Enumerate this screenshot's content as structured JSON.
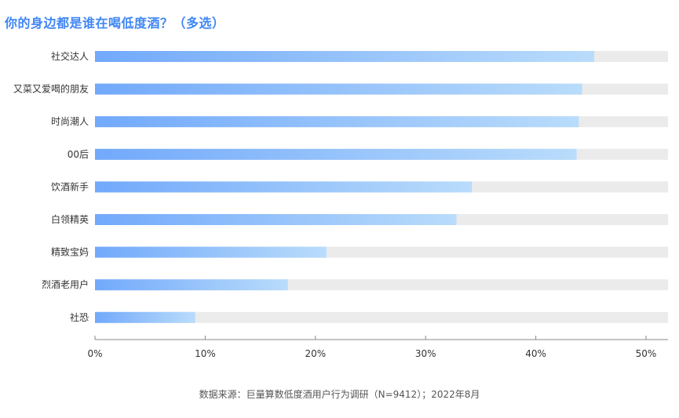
{
  "title": "你的身边都是谁在喝低度酒？（多选）",
  "source": "数据来源：巨量算数低度酒用户行为调研（N=9412）；2022年8月",
  "colors": {
    "bar_start": "#72a9fb",
    "bar_end": "#b9dcfb",
    "track": "#ebebeb",
    "title": "#3f86f5",
    "axis": "#888888"
  },
  "chart_data": {
    "type": "bar",
    "orientation": "horizontal",
    "title": "你的身边都是谁在喝低度酒？（多选）",
    "categories": [
      "社交达人",
      "又菜又爱喝的朋友",
      "时尚潮人",
      "00后",
      "饮酒新手",
      "白领精英",
      "精致宝妈",
      "烈酒老用户",
      "社恐"
    ],
    "values": [
      45.3,
      44.2,
      43.9,
      43.7,
      34.2,
      32.8,
      21.0,
      17.5,
      9.1
    ],
    "unit": "%",
    "xlim": [
      0,
      52
    ],
    "xticks": [
      0,
      10,
      20,
      30,
      40,
      50
    ],
    "xtick_labels": [
      "0%",
      "10%",
      "20%",
      "30%",
      "40%",
      "50%"
    ],
    "grid": false,
    "legend": "none"
  }
}
